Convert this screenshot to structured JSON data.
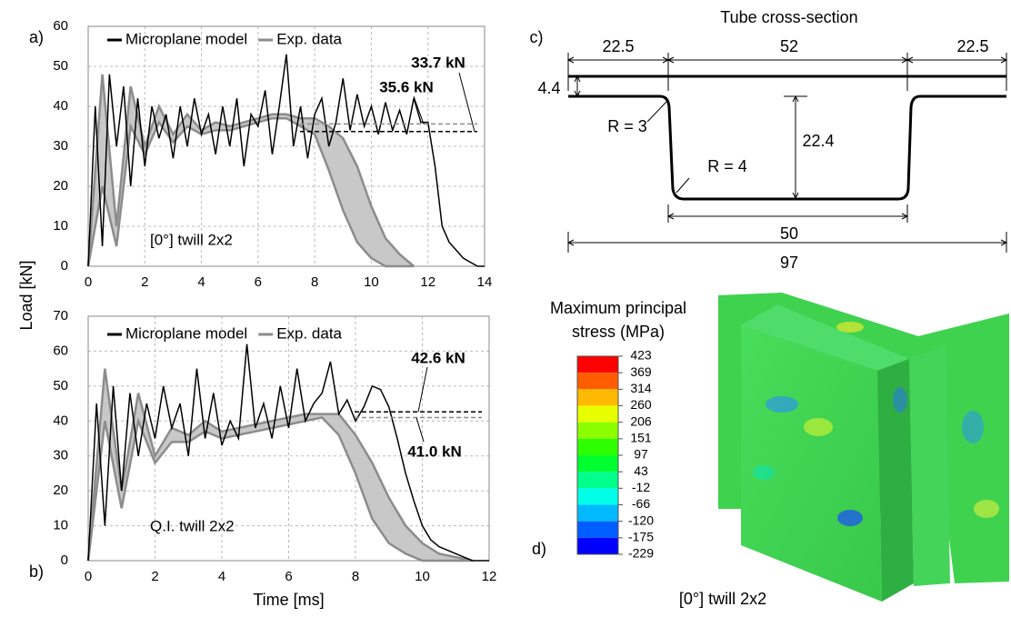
{
  "chart_data": [
    {
      "type": "line",
      "panel_label": "a)",
      "ylabel": "Load [kN]",
      "annotation": "[0°] twill 2x2",
      "xlim": [
        0,
        14
      ],
      "xticks": [
        0,
        2,
        4,
        6,
        8,
        10,
        12,
        14
      ],
      "ylim": [
        0,
        60
      ],
      "yticks": [
        0,
        10,
        20,
        30,
        40,
        50,
        60
      ],
      "grid": true,
      "series": [
        {
          "name": "Microplane model",
          "color": "#000000",
          "x": [
            0,
            0.25,
            0.5,
            0.75,
            1,
            1.25,
            1.5,
            1.75,
            2,
            2.25,
            2.5,
            2.75,
            3,
            3.25,
            3.5,
            3.75,
            4,
            4.25,
            4.5,
            4.75,
            5,
            5.25,
            5.5,
            5.75,
            6,
            6.25,
            6.5,
            6.75,
            7,
            7.25,
            7.5,
            7.75,
            8,
            8.25,
            8.5,
            8.75,
            9,
            9.25,
            9.5,
            9.75,
            10,
            10.25,
            10.5,
            10.75,
            11,
            11.25,
            11.5,
            11.75,
            12,
            12.25,
            12.5,
            12.75,
            13,
            13.25,
            13.5,
            13.75,
            14
          ],
          "values": [
            0,
            40,
            5,
            48,
            30,
            45,
            20,
            42,
            25,
            40,
            32,
            38,
            27,
            40,
            30,
            42,
            33,
            38,
            28,
            40,
            30,
            42,
            25,
            38,
            35,
            44,
            28,
            40,
            53,
            30,
            40,
            27,
            38,
            42,
            30,
            36,
            47,
            34,
            43,
            35,
            40,
            33,
            41,
            34,
            39,
            33,
            42,
            36,
            36,
            25,
            10,
            6,
            4,
            2,
            1,
            0,
            0
          ]
        },
        {
          "name": "Exp. data",
          "color": "#8c8c8c",
          "band_color": "#c8c8c8",
          "x": [
            0,
            0.5,
            1,
            1.5,
            2,
            2.5,
            3,
            3.5,
            4,
            4.5,
            5,
            5.5,
            6,
            6.5,
            7,
            7.5,
            8,
            8.5,
            9,
            9.5,
            10,
            10.5,
            11,
            11.5
          ],
          "values": [
            0,
            48,
            10,
            45,
            30,
            40,
            33,
            38,
            34,
            36,
            35,
            36,
            37,
            38,
            38,
            37,
            37,
            35,
            32,
            25,
            15,
            7,
            3,
            0
          ],
          "lower": [
            0,
            20,
            5,
            35,
            28,
            36,
            31,
            35,
            33,
            34,
            34,
            35,
            36,
            37,
            37,
            35,
            33,
            24,
            14,
            6,
            2,
            0,
            0,
            0
          ]
        }
      ],
      "reference_lines": [
        {
          "value": 33.7,
          "label": "33.7 kN",
          "color": "#000000"
        },
        {
          "value": 35.6,
          "label": "35.6 kN",
          "color": "#8c8c8c"
        }
      ]
    },
    {
      "type": "line",
      "panel_label": "b)",
      "xlabel": "Time [ms]",
      "annotation": "Q.I. twill 2x2",
      "xlim": [
        0,
        12
      ],
      "xticks": [
        0,
        2,
        4,
        6,
        8,
        10,
        12
      ],
      "ylim": [
        0,
        70
      ],
      "yticks": [
        0,
        10,
        20,
        30,
        40,
        50,
        60,
        70
      ],
      "grid": true,
      "series": [
        {
          "name": "Microplane model",
          "color": "#000000",
          "x": [
            0,
            0.25,
            0.5,
            0.75,
            1,
            1.25,
            1.5,
            1.75,
            2,
            2.25,
            2.5,
            2.75,
            3,
            3.25,
            3.5,
            3.75,
            4,
            4.25,
            4.5,
            4.75,
            5,
            5.25,
            5.5,
            5.75,
            6,
            6.25,
            6.5,
            6.75,
            7,
            7.25,
            7.5,
            7.75,
            8,
            8.25,
            8.5,
            8.75,
            9,
            9.25,
            9.5,
            9.75,
            10,
            10.25,
            10.5,
            10.75,
            11,
            11.25,
            11.5,
            11.75,
            12
          ],
          "values": [
            0,
            45,
            10,
            50,
            20,
            48,
            30,
            45,
            35,
            50,
            38,
            45,
            30,
            55,
            35,
            48,
            33,
            40,
            35,
            62,
            38,
            45,
            35,
            50,
            38,
            55,
            40,
            45,
            48,
            57,
            42,
            46,
            40,
            44,
            50,
            49,
            44,
            35,
            25,
            17,
            10,
            6,
            4,
            3,
            2,
            1,
            0,
            0,
            0
          ]
        },
        {
          "name": "Exp. data",
          "color": "#8c8c8c",
          "band_color": "#c8c8c8",
          "x": [
            0,
            0.5,
            1,
            1.5,
            2,
            2.5,
            3,
            3.5,
            4,
            4.5,
            5,
            5.5,
            6,
            6.5,
            7,
            7.5,
            8,
            8.5,
            9,
            9.5,
            10,
            10.5,
            11,
            11.5
          ],
          "values": [
            0,
            55,
            20,
            48,
            30,
            38,
            36,
            40,
            37,
            38,
            39,
            40,
            41,
            42,
            42,
            42,
            36,
            28,
            18,
            10,
            5,
            2,
            1,
            0
          ],
          "lower": [
            0,
            40,
            15,
            40,
            28,
            34,
            34,
            37,
            35,
            36,
            37,
            38,
            39,
            40,
            41,
            36,
            25,
            12,
            5,
            2,
            0,
            0,
            0,
            0
          ]
        }
      ],
      "reference_lines": [
        {
          "value": 42.6,
          "label": "42.6 kN",
          "color": "#000000"
        },
        {
          "value": 41,
          "label": "41.0 kN",
          "color": "#8c8c8c"
        }
      ]
    }
  ],
  "cross_section": {
    "title": "Tube cross-section",
    "panel_label": "c)",
    "top_left": "22.5",
    "top_mid": "52",
    "top_right": "22.5",
    "thickness": "4.4",
    "radius_outer": "R = 3",
    "radius_inner": "R = 4",
    "depth": "22.4",
    "bottom": "50",
    "total": "97"
  },
  "stress_panel": {
    "panel_label": "d)",
    "title_line1": "Maximum principal",
    "title_line2": "stress (MPa)",
    "caption": "[0°] twill 2x2",
    "colorbar_labels": [
      423,
      369,
      314,
      260,
      206,
      151,
      97,
      43,
      -12,
      -66,
      -120,
      -175,
      -229
    ],
    "colorbar_colors": [
      "#ff0000",
      "#ff5d00",
      "#ffb900",
      "#e8ff00",
      "#8bff00",
      "#2eff00",
      "#00ff2e",
      "#00ff8b",
      "#00ffe8",
      "#00b9ff",
      "#005dff",
      "#0000ff"
    ]
  }
}
